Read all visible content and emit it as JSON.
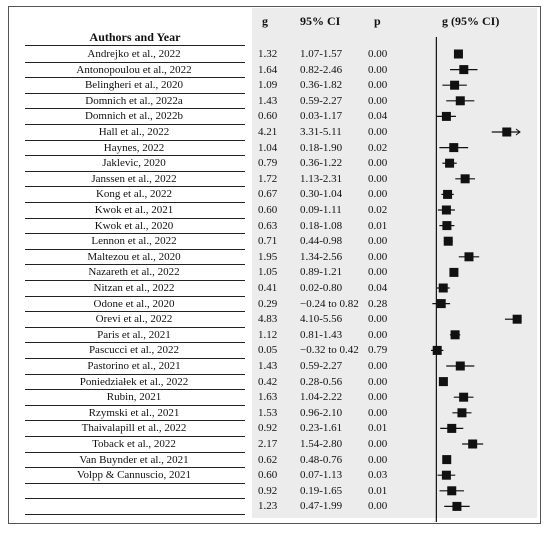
{
  "headers": {
    "authors": "Authors and Year",
    "g": "g",
    "ci": "95% CI",
    "p": "p",
    "plot": "g (95% CI)"
  },
  "chart_data": {
    "type": "forest",
    "xlim": [
      -0.5,
      5.0
    ],
    "reference_line": 0,
    "grid": false,
    "rows": [
      {
        "author": "Andrejko et al., 2022",
        "g": "1.32",
        "ci": "1.07-1.57",
        "p": "0.00",
        "est": 1.32,
        "lo": 1.07,
        "hi": 1.57
      },
      {
        "author": "Antonopoulou et al., 2022",
        "g": "1.64",
        "ci": "0.82-2.46",
        "p": "0.00",
        "est": 1.64,
        "lo": 0.82,
        "hi": 2.46
      },
      {
        "author": "Belingheri et al., 2020",
        "g": "1.09",
        "ci": "0.36-1.82",
        "p": "0.00",
        "est": 1.09,
        "lo": 0.36,
        "hi": 1.82
      },
      {
        "author": "Domnich et al., 2022a",
        "g": "1.43",
        "ci": "0.59-2.27",
        "p": "0.00",
        "est": 1.43,
        "lo": 0.59,
        "hi": 2.27
      },
      {
        "author": "Domnich et al., 2022b",
        "g": "0.60",
        "ci": "0.03-1.17",
        "p": "0.04",
        "est": 0.6,
        "lo": 0.03,
        "hi": 1.17
      },
      {
        "author": "Hall et al., 2022",
        "g": "4.21",
        "ci": "3.31-5.11",
        "p": "0.00",
        "est": 4.21,
        "lo": 3.31,
        "hi": 5.11
      },
      {
        "author": "Haynes, 2022",
        "g": "1.04",
        "ci": "0.18-1.90",
        "p": "0.02",
        "est": 1.04,
        "lo": 0.18,
        "hi": 1.9
      },
      {
        "author": "Jaklevic, 2020",
        "g": "0.79",
        "ci": "0.36-1.22",
        "p": "0.00",
        "est": 0.79,
        "lo": 0.36,
        "hi": 1.22
      },
      {
        "author": "Janssen et al., 2022",
        "g": "1.72",
        "ci": "1.13-2.31",
        "p": "0.00",
        "est": 1.72,
        "lo": 1.13,
        "hi": 2.31
      },
      {
        "author": "Kong et al., 2022",
        "g": "0.67",
        "ci": "0.30-1.04",
        "p": "0.00",
        "est": 0.67,
        "lo": 0.3,
        "hi": 1.04
      },
      {
        "author": "Kwok et al., 2021",
        "g": "0.60",
        "ci": "0.09-1.11",
        "p": "0.02",
        "est": 0.6,
        "lo": 0.09,
        "hi": 1.11
      },
      {
        "author": "Kwok et al., 2020",
        "g": "0.63",
        "ci": "0.18-1.08",
        "p": "0.01",
        "est": 0.63,
        "lo": 0.18,
        "hi": 1.08
      },
      {
        "author": "Lennon et al., 2022",
        "g": "0.71",
        "ci": "0.44-0.98",
        "p": "0.00",
        "est": 0.71,
        "lo": 0.44,
        "hi": 0.98
      },
      {
        "author": "Maltezou et al., 2020",
        "g": "1.95",
        "ci": "1.34-2.56",
        "p": "0.00",
        "est": 1.95,
        "lo": 1.34,
        "hi": 2.56
      },
      {
        "author": "Nazareth et al., 2022",
        "g": "1.05",
        "ci": "0.89-1.21",
        "p": "0.00",
        "est": 1.05,
        "lo": 0.89,
        "hi": 1.21
      },
      {
        "author": "Nitzan et al., 2022",
        "g": "0.41",
        "ci": "0.02-0.80",
        "p": "0.04",
        "est": 0.41,
        "lo": 0.02,
        "hi": 0.8
      },
      {
        "author": "Odone et al., 2020",
        "g": "0.29",
        "ci": "−0.24 to 0.82",
        "p": "0.28",
        "est": 0.29,
        "lo": -0.24,
        "hi": 0.82
      },
      {
        "author": "Orevi et al., 2022",
        "g": "4.83",
        "ci": "4.10-5.56",
        "p": "0.00",
        "est": 4.83,
        "lo": 4.1,
        "hi": 5.56
      },
      {
        "author": "Paris et al., 2021",
        "g": "1.12",
        "ci": "0.81-1.43",
        "p": "0.00",
        "est": 1.12,
        "lo": 0.81,
        "hi": 1.43
      },
      {
        "author": "Pascucci et al., 2022",
        "g": "0.05",
        "ci": "−0.32 to 0.42",
        "p": "0.79",
        "est": 0.05,
        "lo": -0.32,
        "hi": 0.42
      },
      {
        "author": "Pastorino et al., 2021",
        "g": "1.43",
        "ci": "0.59-2.27",
        "p": "0.00",
        "est": 1.43,
        "lo": 0.59,
        "hi": 2.27
      },
      {
        "author": "Poniedziałek et al., 2022",
        "g": "0.42",
        "ci": "0.28-0.56",
        "p": "0.00",
        "est": 0.42,
        "lo": 0.28,
        "hi": 0.56
      },
      {
        "author": "Rubin, 2021",
        "g": "1.63",
        "ci": "1.04-2.22",
        "p": "0.00",
        "est": 1.63,
        "lo": 1.04,
        "hi": 2.22
      },
      {
        "author": "Rzymski et al., 2021",
        "g": "1.53",
        "ci": "0.96-2.10",
        "p": "0.00",
        "est": 1.53,
        "lo": 0.96,
        "hi": 2.1
      },
      {
        "author": "Thaivalapill et al., 2022",
        "g": "0.92",
        "ci": "0.23-1.61",
        "p": "0.01",
        "est": 0.92,
        "lo": 0.23,
        "hi": 1.61
      },
      {
        "author": "Toback et al., 2022",
        "g": "2.17",
        "ci": "1.54-2.80",
        "p": "0.00",
        "est": 2.17,
        "lo": 1.54,
        "hi": 2.8
      },
      {
        "author": "Van Buynder et al., 2021",
        "g": "0.62",
        "ci": "0.48-0.76",
        "p": "0.00",
        "est": 0.62,
        "lo": 0.48,
        "hi": 0.76
      },
      {
        "author": "Volpp & Cannuscio, 2021",
        "g": "0.60",
        "ci": "0.07-1.13",
        "p": "0.03",
        "est": 0.6,
        "lo": 0.07,
        "hi": 1.13
      },
      {
        "author": "",
        "g": "0.92",
        "ci": "0.19-1.65",
        "p": "0.01",
        "est": 0.92,
        "lo": 0.19,
        "hi": 1.65
      },
      {
        "author": "",
        "g": "1.23",
        "ci": "0.47-1.99",
        "p": "0.00",
        "est": 1.23,
        "lo": 0.47,
        "hi": 1.99
      }
    ]
  }
}
